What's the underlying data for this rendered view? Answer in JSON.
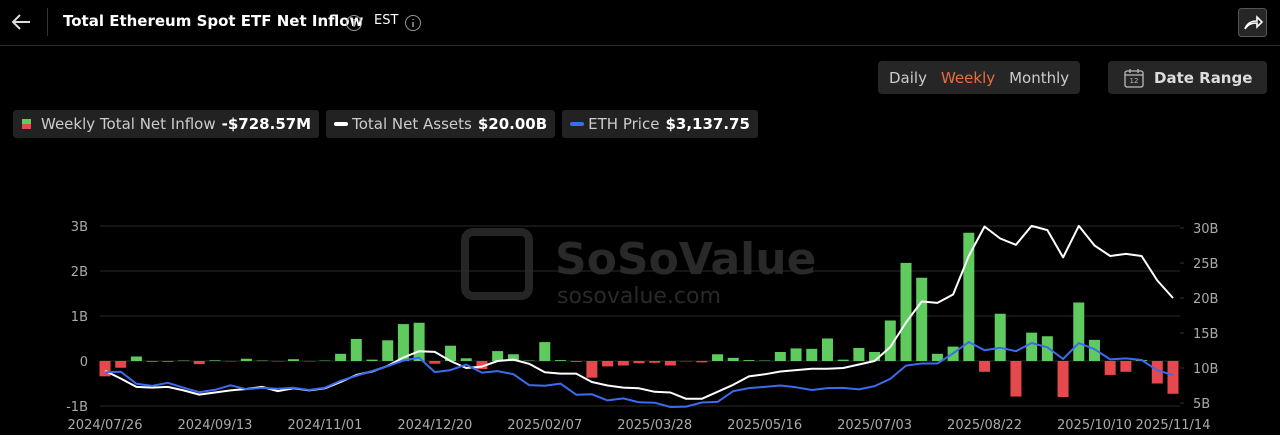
{
  "header": {
    "title": "Total Ethereum Spot ETF Net Inflow",
    "timezone": "EST"
  },
  "controls": {
    "intervals": [
      "Daily",
      "Weekly",
      "Monthly"
    ],
    "active_interval": 1,
    "calendar_icon": "12",
    "date_range": "Date Range"
  },
  "chart_data": {
    "type": "combo",
    "watermark": {
      "brand": "SoSoValue",
      "url": "sosovalue.com"
    },
    "categories": [
      "2024/07/26",
      null,
      null,
      null,
      null,
      null,
      null,
      "2024/09/13",
      null,
      null,
      null,
      null,
      null,
      null,
      "2024/11/01",
      null,
      null,
      null,
      null,
      null,
      null,
      "2024/12/20",
      null,
      null,
      null,
      null,
      null,
      null,
      "2025/02/07",
      null,
      null,
      null,
      null,
      null,
      null,
      "2025/03/28",
      null,
      null,
      null,
      null,
      null,
      null,
      "2025/05/16",
      null,
      null,
      null,
      null,
      null,
      null,
      "2025/07/03",
      null,
      null,
      null,
      null,
      null,
      null,
      "2025/08/22",
      null,
      null,
      null,
      null,
      null,
      null,
      "2025/10/10",
      null,
      null,
      null,
      null,
      "2025/11/14"
    ],
    "ylim": [
      -1,
      3
    ],
    "yticks": [
      {
        "value": 3,
        "label": "3B"
      },
      {
        "value": 2,
        "label": "2B"
      },
      {
        "value": 1,
        "label": "1B"
      },
      0,
      {
        "value": -1,
        "label": "-1B"
      }
    ],
    "y2lim": [
      5,
      30
    ],
    "y2ticks": [
      {
        "value": 30,
        "label": "30B"
      },
      {
        "value": 25,
        "label": "25B"
      },
      {
        "value": 20,
        "label": "20B"
      },
      {
        "value": 15,
        "label": "15B"
      },
      {
        "value": 10,
        "label": "10B"
      },
      {
        "value": 5,
        "label": "5B"
      }
    ],
    "grid": true,
    "series": [
      {
        "name": "Weekly Total Net Inflow",
        "type": "bar",
        "color": "#5fcb5f",
        "negative_color": "#e5484d",
        "legend_value": "-$728.57M",
        "values": [
          -0.34,
          -0.15,
          0.1,
          -0.02,
          -0.02,
          0.01,
          -0.07,
          0.015,
          -0.01,
          0.05,
          0.01,
          -0.01,
          0.04,
          -0.01,
          0.01,
          0.16,
          0.49,
          0.03,
          0.46,
          0.82,
          0.85,
          -0.06,
          0.34,
          0.06,
          -0.18,
          0.22,
          0.15,
          0.01,
          0.42,
          0.02,
          -0.02,
          -0.37,
          -0.12,
          -0.1,
          -0.05,
          -0.04,
          -0.1,
          -0.01,
          -0.03,
          0.15,
          0.07,
          0.02,
          0.01,
          0.2,
          0.28,
          0.27,
          0.5,
          0.03,
          0.29,
          0.2,
          0.9,
          2.18,
          1.85,
          0.16,
          0.32,
          2.85,
          -0.24,
          1.05,
          -0.79,
          0.63,
          0.55,
          -0.8,
          1.3,
          0.47,
          -0.31,
          -0.24,
          0.02,
          -0.5,
          -0.72857
        ]
      },
      {
        "name": "Total Net Assets",
        "type": "line",
        "axis": "y2",
        "color": "#ffffff",
        "legend_value": "$20.00B",
        "values": [
          9.6,
          8.5,
          7.3,
          7.2,
          7.3,
          6.8,
          6.2,
          6.5,
          6.8,
          7.0,
          7.3,
          6.7,
          7.1,
          6.8,
          7.1,
          8.0,
          9.0,
          9.5,
          10.3,
          11.5,
          12.4,
          12.3,
          11.0,
          10.0,
          10.2,
          11.0,
          11.2,
          10.6,
          9.4,
          9.2,
          9.2,
          8.0,
          7.5,
          7.2,
          7.1,
          6.6,
          6.5,
          5.6,
          5.6,
          6.6,
          7.6,
          8.8,
          9.1,
          9.5,
          9.7,
          9.9,
          9.9,
          10.0,
          10.5,
          11.0,
          13.0,
          16.5,
          19.5,
          19.3,
          20.5,
          26.0,
          30.2,
          28.5,
          27.6,
          30.3,
          29.7,
          25.8,
          30.3,
          27.5,
          26.0,
          26.3,
          26.0,
          22.5,
          20.0
        ]
      },
      {
        "name": "ETH Price",
        "type": "line",
        "axis": "y3",
        "color": "#3b6cf0",
        "legend_value": "$3,137.75",
        "values": [
          3270,
          3300,
          2710,
          2610,
          2760,
          2520,
          2300,
          2420,
          2640,
          2450,
          2510,
          2470,
          2520,
          2410,
          2520,
          2860,
          3100,
          3330,
          3570,
          3850,
          3990,
          3280,
          3380,
          3650,
          3260,
          3330,
          3180,
          2650,
          2620,
          2720,
          2180,
          2200,
          1900,
          2000,
          1810,
          1790,
          1580,
          1600,
          1800,
          1830,
          2350,
          2500,
          2560,
          2630,
          2540,
          2410,
          2500,
          2510,
          2440,
          2600,
          2950,
          3600,
          3700,
          3700,
          4200,
          4750,
          4350,
          4470,
          4300,
          4700,
          4490,
          3920,
          4700,
          4400,
          3900,
          3950,
          3870,
          3370,
          3137.75
        ]
      }
    ]
  }
}
